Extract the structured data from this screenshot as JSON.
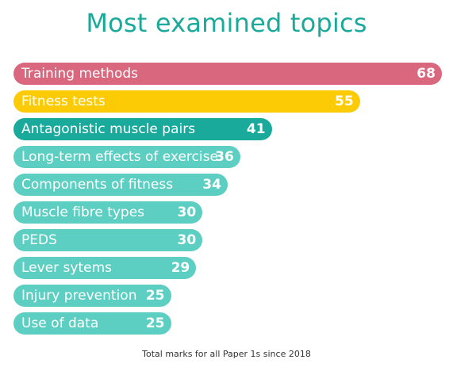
{
  "colors": {
    "title": "#1aaa9b",
    "rank1": "#d9677d",
    "rank2": "#fdcb06",
    "rank3": "#1aaa9b",
    "rest": "#5dcec2",
    "label_text": "#ffffff",
    "footnote_text": "#333333"
  },
  "chart_data": {
    "type": "bar",
    "orientation": "horizontal",
    "title": "Most examined topics",
    "footnote": "Total marks for all Paper 1s since 2018",
    "categories": [
      "Training methods",
      "Fitness tests",
      "Antagonistic muscle pairs",
      "Long-term effects of exercise",
      "Components of fitness",
      "Muscle fibre types",
      "PEDS",
      "Lever sytems",
      "Injury prevention",
      "Use of data"
    ],
    "values": [
      68,
      55,
      41,
      36,
      34,
      30,
      30,
      29,
      25,
      25
    ],
    "bar_colors": [
      "#d9677d",
      "#fdcb06",
      "#1aaa9b",
      "#5dcec2",
      "#5dcec2",
      "#5dcec2",
      "#5dcec2",
      "#5dcec2",
      "#5dcec2",
      "#5dcec2"
    ],
    "data_labels": true,
    "grid": false,
    "legend": "none"
  }
}
